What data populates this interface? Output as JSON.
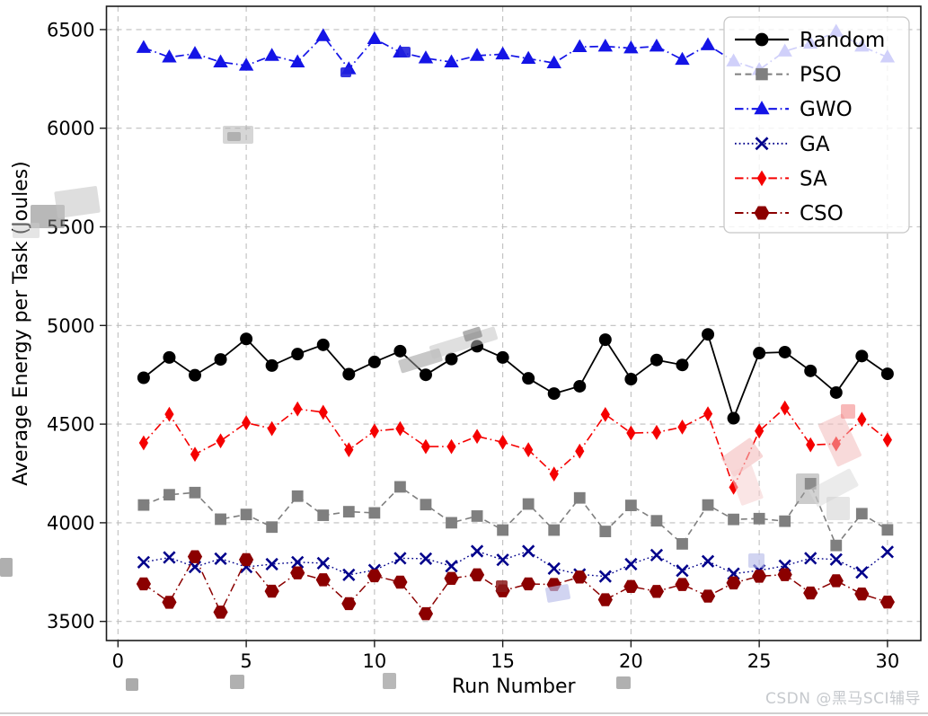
{
  "watermark": {
    "text": "CSDN @黑马SCI辅导"
  },
  "chart_data": {
    "type": "line",
    "title": "",
    "xlabel": "Run Number",
    "ylabel": "Average Energy per Task (Joules)",
    "grid": true,
    "legend_position": "upper right",
    "xlim": [
      -0.45,
      31.3
    ],
    "ylim": [
      3403,
      6618
    ],
    "xticks": [
      0,
      5,
      10,
      15,
      20,
      25,
      30
    ],
    "yticks": [
      3500,
      4000,
      4500,
      5000,
      5500,
      6000,
      6500
    ],
    "x": [
      1,
      2,
      3,
      4,
      5,
      6,
      7,
      8,
      9,
      10,
      11,
      12,
      13,
      14,
      15,
      16,
      17,
      18,
      19,
      20,
      21,
      22,
      23,
      24,
      25,
      26,
      27,
      28,
      29,
      30
    ],
    "series": [
      {
        "name": "Random",
        "color": "#000000",
        "marker": "circle",
        "linestyle": "solid",
        "linewidth": 1.8,
        "values": [
          4735,
          4838,
          4748,
          4828,
          4932,
          4797,
          4855,
          4902,
          4753,
          4815,
          4870,
          4750,
          4830,
          4895,
          4838,
          4732,
          4655,
          4692,
          4928,
          4728,
          4825,
          4800,
          4955,
          4530,
          4860,
          4865,
          4770,
          4660,
          4845,
          4755
        ]
      },
      {
        "name": "PSO",
        "color": "#7f7f7f",
        "marker": "square",
        "linestyle": "dashed",
        "linewidth": 1.6,
        "values": [
          4090,
          4142,
          4153,
          4018,
          4042,
          3978,
          4135,
          4038,
          4056,
          4050,
          4182,
          4092,
          4000,
          4034,
          3963,
          4095,
          3963,
          4126,
          3956,
          4088,
          4010,
          3893,
          4090,
          4017,
          4021,
          4008,
          4198,
          3885,
          4046,
          3964
        ]
      },
      {
        "name": "GWO",
        "color": "#1414e6",
        "marker": "triangle",
        "linestyle": "dashdot",
        "linewidth": 1.7,
        "values": [
          6408,
          6360,
          6378,
          6335,
          6318,
          6368,
          6335,
          6468,
          6300,
          6453,
          6385,
          6355,
          6335,
          6368,
          6375,
          6353,
          6330,
          6412,
          6415,
          6406,
          6415,
          6348,
          6422,
          6340,
          6296,
          6390,
          6430,
          6490,
          6415,
          6360
        ]
      },
      {
        "name": "GA",
        "color": "#00008b",
        "marker": "x",
        "linestyle": "dotted",
        "linewidth": 1.4,
        "values": [
          3800,
          3824,
          3776,
          3818,
          3776,
          3790,
          3800,
          3795,
          3736,
          3760,
          3820,
          3818,
          3780,
          3856,
          3812,
          3856,
          3768,
          3738,
          3728,
          3790,
          3836,
          3757,
          3805,
          3742,
          3758,
          3782,
          3820,
          3814,
          3748,
          3852
        ]
      },
      {
        "name": "SA",
        "color": "#f50000",
        "marker": "thin-diamond",
        "linestyle": "dashdot",
        "linewidth": 1.6,
        "values": [
          4405,
          4550,
          4347,
          4415,
          4507,
          4477,
          4577,
          4560,
          4370,
          4465,
          4477,
          4386,
          4386,
          4438,
          4408,
          4370,
          4247,
          4363,
          4549,
          4455,
          4458,
          4485,
          4552,
          4180,
          4465,
          4582,
          4395,
          4400,
          4524,
          4420
        ]
      },
      {
        "name": "CSO",
        "color": "#8b0000",
        "marker": "hexagon",
        "linestyle": "dashdot",
        "linewidth": 1.5,
        "values": [
          3690,
          3597,
          3828,
          3547,
          3813,
          3653,
          3746,
          3711,
          3590,
          3731,
          3699,
          3539,
          3718,
          3736,
          3655,
          3690,
          3687,
          3725,
          3610,
          3677,
          3652,
          3687,
          3628,
          3695,
          3729,
          3737,
          3644,
          3706,
          3639,
          3598
        ]
      }
    ]
  },
  "artifacts": [
    [
      34,
      228,
      38,
      26,
      "#7d7d7d",
      0.55,
      0
    ],
    [
      62,
      210,
      48,
      30,
      "#c2c2c2",
      0.55,
      -8
    ],
    [
      14,
      248,
      30,
      17,
      "#cccccc",
      0.5,
      0
    ],
    [
      248,
      140,
      34,
      20,
      "#b5b5b5",
      0.55,
      0
    ],
    [
      253,
      147,
      15,
      10,
      "#8a8a8a",
      0.5,
      0
    ],
    [
      444,
      394,
      48,
      15,
      "#9a9a9a",
      0.55,
      -17
    ],
    [
      478,
      374,
      76,
      15,
      "#c0c0c0",
      0.5,
      -17
    ],
    [
      516,
      366,
      20,
      12,
      "#6f6f6f",
      0.55,
      -17
    ],
    [
      806,
      496,
      40,
      26,
      "#f3bcbc",
      0.6,
      -35
    ],
    [
      818,
      520,
      26,
      40,
      "#f6d0d0",
      0.55,
      -20
    ],
    [
      920,
      464,
      30,
      52,
      "#f2bcbc",
      0.55,
      -25
    ],
    [
      936,
      450,
      16,
      16,
      "#ee5050",
      0.4,
      0
    ],
    [
      886,
      527,
      26,
      34,
      "#9a9a9a",
      0.5,
      0
    ],
    [
      902,
      532,
      52,
      22,
      "#d8d8d8",
      0.5,
      -28
    ],
    [
      920,
      553,
      26,
      26,
      "#cfcfcf",
      0.55,
      0
    ],
    [
      379,
      75,
      12,
      11,
      "#2020dd",
      0.9,
      0
    ],
    [
      444,
      52,
      13,
      12,
      "#2020dd",
      0.9,
      0
    ],
    [
      608,
      652,
      26,
      17,
      "#b9bde9",
      0.65,
      -10
    ],
    [
      833,
      616,
      18,
      16,
      "#b9bde9",
      0.65,
      0
    ],
    [
      552,
      646,
      13,
      13,
      "#8b1a1a",
      0.85,
      0
    ],
    [
      140,
      755,
      14,
      14,
      "#969696",
      0.8,
      0
    ],
    [
      256,
      751,
      16,
      16,
      "#969696",
      0.75,
      0
    ],
    [
      426,
      749,
      15,
      18,
      "#a0a0a0",
      0.75,
      0
    ],
    [
      686,
      753,
      16,
      14,
      "#969696",
      0.75,
      0
    ],
    [
      0,
      621,
      14,
      21,
      "#8d8d8d",
      0.7,
      0
    ]
  ]
}
